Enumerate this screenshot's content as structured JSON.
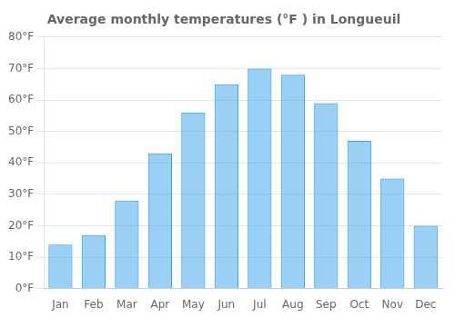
{
  "chart_data": {
    "type": "bar",
    "title": "Average monthly temperatures (°F ) in Longueuil",
    "categories": [
      "Jan",
      "Feb",
      "Mar",
      "Apr",
      "May",
      "Jun",
      "Jul",
      "Aug",
      "Sep",
      "Oct",
      "Nov",
      "Dec"
    ],
    "values": [
      14,
      17,
      28,
      43,
      56,
      65,
      70,
      68,
      59,
      47,
      35,
      20
    ],
    "ylim": [
      0,
      80
    ],
    "yticks": [
      {
        "value": 0,
        "label": "0°F"
      },
      {
        "value": 10,
        "label": "10°F"
      },
      {
        "value": 20,
        "label": "20°F"
      },
      {
        "value": 30,
        "label": "30°F"
      },
      {
        "value": 40,
        "label": "40°F"
      },
      {
        "value": 50,
        "label": "50°F"
      },
      {
        "value": 60,
        "label": "60°F"
      },
      {
        "value": 70,
        "label": "70°F"
      },
      {
        "value": 80,
        "label": "80°F"
      }
    ],
    "grid": true
  }
}
